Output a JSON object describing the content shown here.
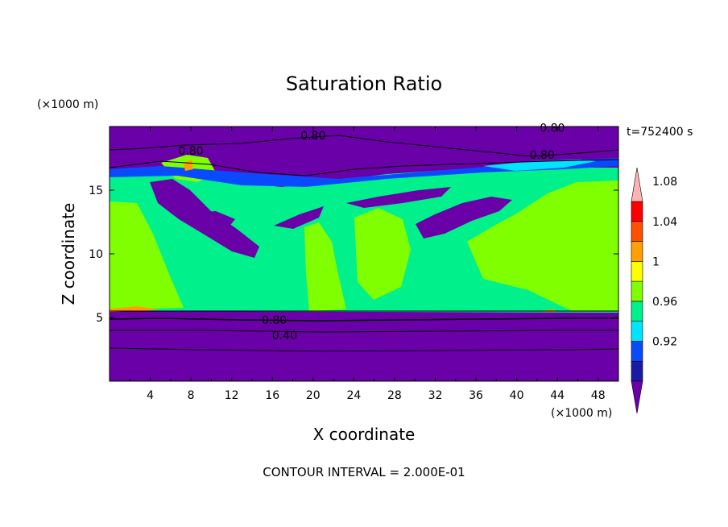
{
  "chart_data": {
    "type": "heatmap",
    "title": "Saturation Ratio",
    "time_label": "t=752400 s",
    "xlabel": "X coordinate",
    "ylabel": "Z coordinate",
    "x_unit": "(×1000 m)",
    "y_unit": "(×1000 m)",
    "xlim": [
      0,
      50
    ],
    "ylim": [
      0,
      20
    ],
    "x_ticks": [
      4,
      8,
      12,
      16,
      20,
      24,
      28,
      32,
      36,
      40,
      44,
      48
    ],
    "y_ticks": [
      5,
      10,
      15
    ],
    "contour_labels": [
      {
        "text": "0.80",
        "x": 20,
        "z": 19.3
      },
      {
        "text": "0.80",
        "x": 8,
        "z": 18.1
      },
      {
        "text": "0.80",
        "x": 42.5,
        "z": 17.8
      },
      {
        "text": "0.80",
        "x": 43.5,
        "z": 19.9
      },
      {
        "text": "0.80",
        "x": 16.2,
        "z": 4.8
      },
      {
        "text": "0.40",
        "x": 17.2,
        "z": 3.6
      }
    ],
    "colorbar": {
      "levels": [
        0.92,
        0.96,
        1,
        1.04,
        1.08
      ],
      "colors": [
        "#6a00a8",
        "#1a1aa6",
        "#0a4aff",
        "#00e5ff",
        "#00f08c",
        "#80ff00",
        "#ffff00",
        "#ffa000",
        "#ff5000",
        "#ff0000",
        "#ffb3b3"
      ],
      "extend": "both"
    },
    "footer": "CONTOUR INTERVAL = 2.000E-01"
  }
}
